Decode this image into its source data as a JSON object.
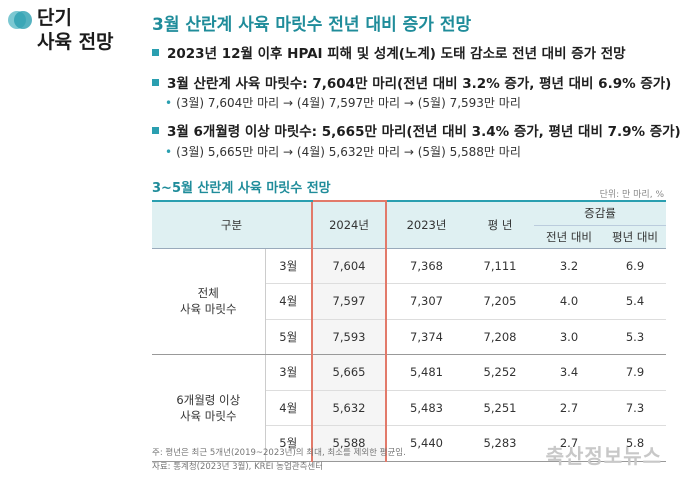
{
  "side_title": [
    "단기",
    "사육 전망"
  ],
  "main_title": "3월 산란계 사육 마릿수 전년 대비 증가 전망",
  "bullets": [
    {
      "text": "2023년 12월 이후 HPAI 피해 및 성계(노계) 도태 감소로 전년 대비 증가 전망"
    },
    {
      "text": "3월 산란계 사육 마릿수: 7,604만 마리(전년 대비 3.2% 증가, 평년 대비 6.9% 증가)",
      "sub": "(3월) 7,604만 마리 → (4월) 7,597만 마리 → (5월) 7,593만 마리"
    },
    {
      "text": "3월 6개월령 이상 마릿수: 5,665만 마리(전년 대비 3.4% 증가, 평년 대비 7.9% 증가)",
      "sub": "(3월) 5,665만 마리 → (4월) 5,632만 마리 → (5월) 5,588만 마리"
    }
  ],
  "table_title": "3~5월 산란계 사육 마릿수 전망",
  "unit": "단위: 만 마리, %",
  "table": {
    "headers": {
      "category": "구분",
      "y2024": "2024년",
      "y2023": "2023년",
      "avg": "평 년",
      "change": "증감률",
      "vs_prev": "전년 대비",
      "vs_avg": "평년 대비"
    },
    "groups": [
      {
        "name": "전체\n사육 마릿수",
        "rows": [
          {
            "month": "3월",
            "y2024": "7,604",
            "y2023": "7,368",
            "avg": "7,111",
            "vs_prev": "3.2",
            "vs_avg": "6.9"
          },
          {
            "month": "4월",
            "y2024": "7,597",
            "y2023": "7,307",
            "avg": "7,205",
            "vs_prev": "4.0",
            "vs_avg": "5.4"
          },
          {
            "month": "5월",
            "y2024": "7,593",
            "y2023": "7,374",
            "avg": "7,208",
            "vs_prev": "3.0",
            "vs_avg": "5.3"
          }
        ]
      },
      {
        "name": "6개월령 이상\n사육 마릿수",
        "rows": [
          {
            "month": "3월",
            "y2024": "5,665",
            "y2023": "5,481",
            "avg": "5,252",
            "vs_prev": "3.4",
            "vs_avg": "7.9"
          },
          {
            "month": "4월",
            "y2024": "5,632",
            "y2023": "5,483",
            "avg": "5,251",
            "vs_prev": "2.7",
            "vs_avg": "7.3"
          },
          {
            "month": "5월",
            "y2024": "5,588",
            "y2023": "5,440",
            "avg": "5,283",
            "vs_prev": "2.7",
            "vs_avg": "5.8"
          }
        ]
      }
    ]
  },
  "footnotes": [
    "주: 평년은 최근 5개년(2019~2023년)의 최대, 최소를 제외한 평균임.",
    "자료: 통계청(2023년 3월), KREI 농업관측센터"
  ],
  "watermark": "축산정보뉴스",
  "colors": {
    "accent": "#1f8c9a",
    "highlight_border": "#e27a6a",
    "header_bg": "#dff0f2"
  }
}
